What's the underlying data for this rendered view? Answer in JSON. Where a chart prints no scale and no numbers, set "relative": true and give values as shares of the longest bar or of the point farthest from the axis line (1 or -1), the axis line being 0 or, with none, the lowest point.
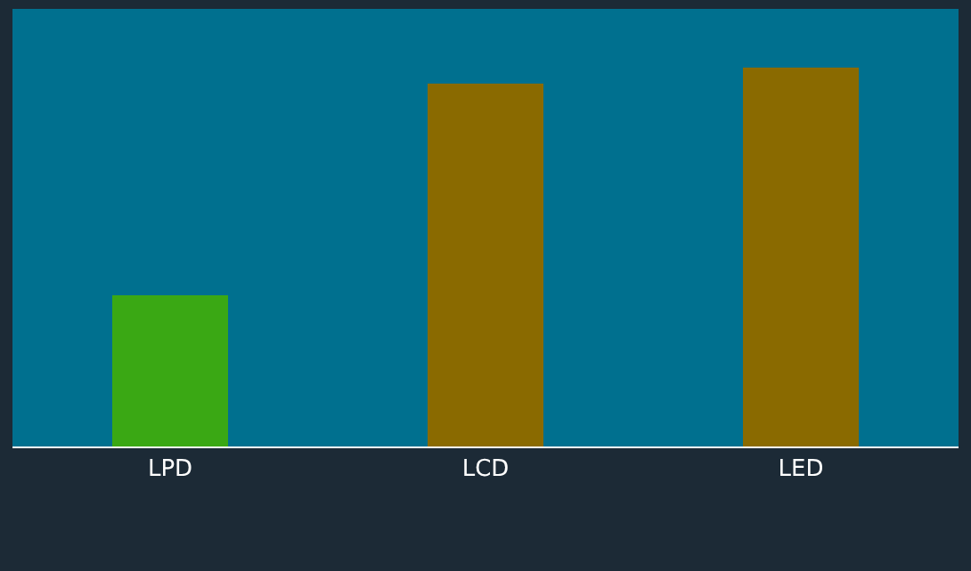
{
  "chart_data": {
    "type": "bar",
    "relative": true,
    "categories": [
      "LPD",
      "LCD",
      "LED"
    ],
    "values": [
      0.4,
      0.96,
      1
    ],
    "colors": [
      "#3aa814",
      "#8a6a00",
      "#8a6a00"
    ],
    "grid": false
  }
}
